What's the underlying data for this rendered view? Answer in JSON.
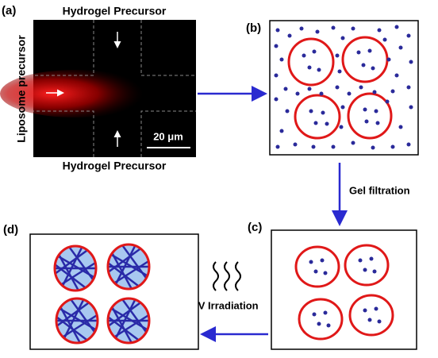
{
  "panels": {
    "a": {
      "label": "(a)",
      "top_label": "Hydrogel Precursor",
      "side_label": "Liposome precursor",
      "scale_bar": "20 μm",
      "bottom_label": "Hydrogel Precursor"
    },
    "b": {
      "label": "(b)"
    },
    "c": {
      "label": "(c)"
    },
    "d": {
      "label": "(d)"
    }
  },
  "arrows": {
    "gel_filtration": "Gel filtration",
    "uv_irradiation": "UV Irradiation"
  }
}
